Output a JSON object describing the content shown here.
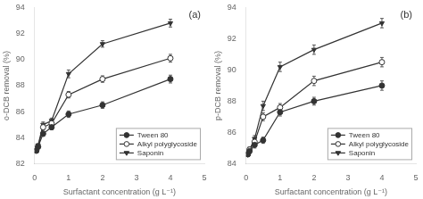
{
  "chart_data": [
    {
      "type": "line",
      "annotation": "(a)",
      "xlabel": "Surfactant concentration (g L⁻¹)",
      "ylabel": "o-DCB removal (%)",
      "xlim": [
        0,
        5
      ],
      "xticks": [
        0,
        1,
        2,
        3,
        4,
        5
      ],
      "ylim": [
        82,
        94
      ],
      "yticks": [
        82,
        84,
        86,
        88,
        90,
        92,
        94
      ],
      "grid": false,
      "legend": "lower right",
      "series": [
        {
          "name": "Tween 80",
          "color": "#333333",
          "marker": "circle",
          "line_style": "solid",
          "x": [
            0.05,
            0.1,
            0.25,
            0.5,
            1.0,
            2.0,
            4.0
          ],
          "values": [
            83.0,
            83.3,
            84.3,
            84.8,
            85.8,
            86.5,
            88.5
          ],
          "yerr": [
            0.15,
            0.15,
            0.2,
            0.2,
            0.25,
            0.25,
            0.3
          ]
        },
        {
          "name": "Alkyl polyglycoside",
          "color": "#333333",
          "marker": "open_circle",
          "line_style": "solid",
          "x": [
            0.05,
            0.1,
            0.25,
            0.5,
            1.0,
            2.0,
            4.0
          ],
          "values": [
            83.0,
            83.3,
            84.8,
            85.1,
            87.3,
            88.5,
            90.1
          ],
          "yerr": [
            0.15,
            0.15,
            0.2,
            0.2,
            0.25,
            0.25,
            0.3
          ]
        },
        {
          "name": "Saponin",
          "color": "#333333",
          "marker": "triangle_down",
          "line_style": "solid",
          "x": [
            0.05,
            0.1,
            0.25,
            0.5,
            1.0,
            2.0,
            4.0
          ],
          "values": [
            83.0,
            83.4,
            85.0,
            85.3,
            88.9,
            91.2,
            92.8
          ],
          "yerr": [
            0.15,
            0.15,
            0.2,
            0.2,
            0.3,
            0.25,
            0.3
          ]
        }
      ]
    },
    {
      "type": "line",
      "annotation": "(b)",
      "xlabel": "Surfactant concentration (g L⁻¹)",
      "ylabel": "p-DCB removal (%)",
      "xlim": [
        0,
        5
      ],
      "xticks": [
        0,
        1,
        2,
        3,
        4,
        5
      ],
      "ylim": [
        84,
        94
      ],
      "yticks": [
        84,
        86,
        88,
        90,
        92,
        94
      ],
      "grid": false,
      "legend": "lower right",
      "series": [
        {
          "name": "Tween 80",
          "color": "#333333",
          "marker": "circle",
          "line_style": "solid",
          "x": [
            0.05,
            0.1,
            0.25,
            0.5,
            1.0,
            2.0,
            4.0
          ],
          "values": [
            84.6,
            84.8,
            85.2,
            85.5,
            87.3,
            88.0,
            89.0
          ],
          "yerr": [
            0.15,
            0.15,
            0.2,
            0.2,
            0.25,
            0.25,
            0.3
          ]
        },
        {
          "name": "Alkyl polyglycoside",
          "color": "#333333",
          "marker": "open_circle",
          "line_style": "solid",
          "x": [
            0.05,
            0.1,
            0.25,
            0.5,
            1.0,
            2.0,
            4.0
          ],
          "values": [
            84.6,
            84.9,
            85.4,
            87.0,
            87.6,
            89.3,
            90.5
          ],
          "yerr": [
            0.15,
            0.15,
            0.2,
            0.25,
            0.25,
            0.3,
            0.3
          ]
        },
        {
          "name": "Saponin",
          "color": "#333333",
          "marker": "triangle_down",
          "line_style": "solid",
          "x": [
            0.05,
            0.1,
            0.25,
            0.5,
            1.0,
            2.0,
            4.0
          ],
          "values": [
            84.6,
            84.9,
            85.6,
            87.7,
            90.2,
            91.3,
            93.0
          ],
          "yerr": [
            0.15,
            0.15,
            0.2,
            0.3,
            0.3,
            0.3,
            0.3
          ]
        }
      ]
    }
  ]
}
